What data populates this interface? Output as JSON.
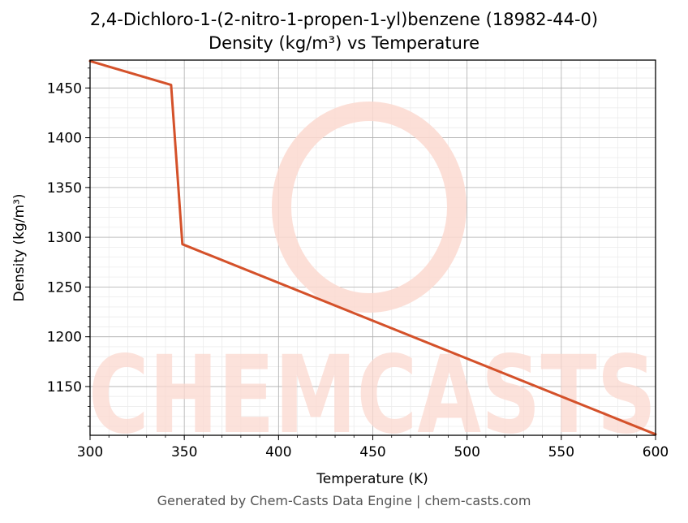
{
  "chart_data": {
    "type": "line",
    "title": "2,4-Dichloro-1-(2-nitro-1-propen-1-yl)benzene (18982-44-0)",
    "subtitle": "Density (kg/m³) vs Temperature",
    "xlabel": "Temperature (K)",
    "ylabel": "Density (kg/m³)",
    "xlim": [
      300,
      600
    ],
    "ylim": [
      1101,
      1478
    ],
    "x_ticks": [
      300,
      350,
      400,
      450,
      500,
      550,
      600
    ],
    "y_ticks": [
      1150,
      1200,
      1250,
      1300,
      1350,
      1400,
      1450
    ],
    "grid": true,
    "minor_grid": true,
    "series": [
      {
        "color": "#d4512a",
        "x": [
          300,
          343,
          349,
          600
        ],
        "y": [
          1477,
          1453,
          1293,
          1102
        ]
      }
    ]
  },
  "watermark": {
    "text": "CHEMCASTS",
    "color": "#fcd9d0"
  },
  "footer": "Generated by Chem-Casts Data Engine | chem-casts.com"
}
